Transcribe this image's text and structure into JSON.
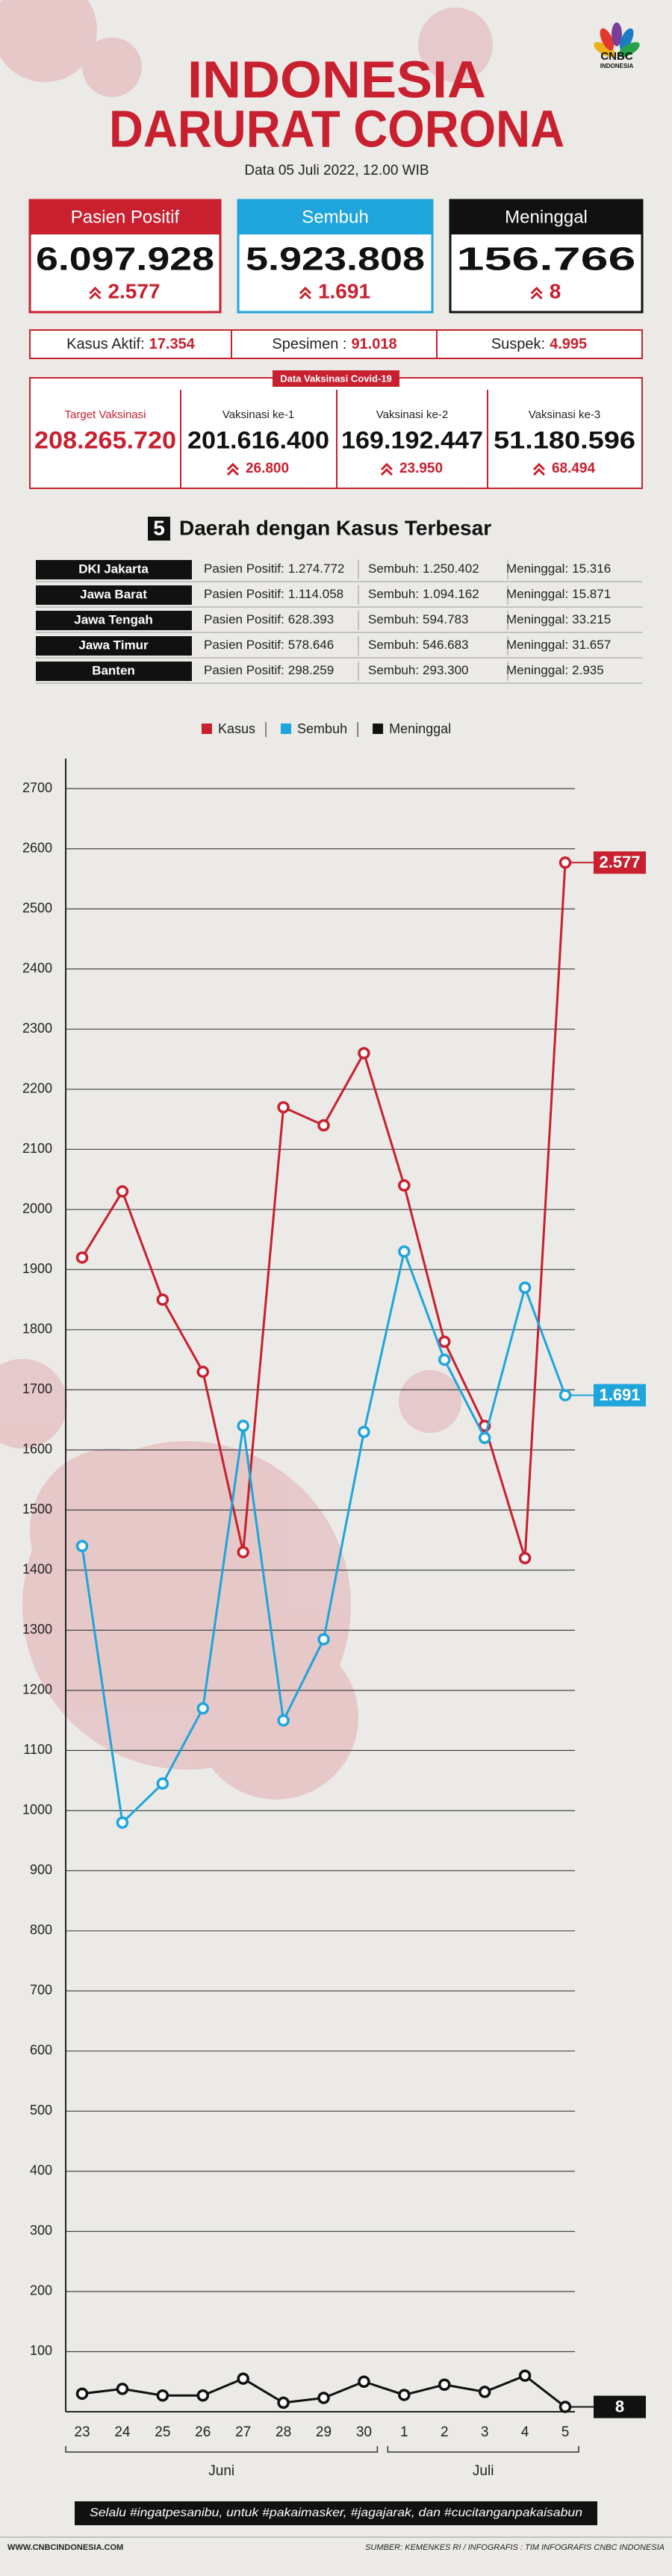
{
  "header": {
    "title_lines": [
      "INDONESIA",
      "DARURAT CORONA"
    ],
    "logo": "CNBC",
    "logo_sub": "INDONESIA",
    "date": "Data 05 Juli 2022, 12.00 WIB"
  },
  "cards": [
    {
      "label": "Pasien Positif",
      "value": "6.097.928",
      "change": "2.577"
    },
    {
      "label": "Sembuh",
      "value": "5.923.808",
      "change": "1.691"
    },
    {
      "label": "Meninggal",
      "value": "156.766",
      "change": "8"
    }
  ],
  "stats": [
    {
      "label": "Kasus Aktif:",
      "value": "17.354"
    },
    {
      "label": "Spesimen :",
      "value": "91.018"
    },
    {
      "label": "Suspek:",
      "value": "4.995"
    }
  ],
  "vaccination": {
    "tag": "Data Vaksinasi Covid-19",
    "items": [
      {
        "label": "Target Vaksinasi",
        "value": "208.265.720"
      },
      {
        "label": "Vaksinasi ke-1",
        "value": "201.616.400",
        "change": "26.800"
      },
      {
        "label": "Vaksinasi ke-2",
        "value": "169.192.447",
        "change": "23.950"
      },
      {
        "label": "Vaksinasi ke-3",
        "value": "51.180.596",
        "change": "68.494"
      }
    ]
  },
  "regions": {
    "number": "5",
    "title": "Daerah dengan Kasus Terbesar",
    "labels": [
      "Pasien Positif:",
      "Sembuh:",
      "Meninggal:"
    ],
    "rows": [
      [
        "DKI Jakarta",
        "1.274.772",
        "1.250.402",
        "15.316"
      ],
      [
        "Jawa Barat",
        "1.114.058",
        "1.094.162",
        "15.871"
      ],
      [
        "Jawa Tengah",
        "628.393",
        "594.783",
        "33.215"
      ],
      [
        "Jawa Timur",
        "578.646",
        "546.683",
        "31.657"
      ],
      [
        "Banten",
        "298.259",
        "293.300",
        "2.935"
      ]
    ]
  },
  "chart_data": {
    "type": "line",
    "category_groups": [
      {
        "name": "Juni",
        "categories": [
          "23",
          "24",
          "25",
          "26",
          "27",
          "28",
          "29",
          "30"
        ]
      },
      {
        "name": "Juli",
        "categories": [
          "1",
          "2",
          "3",
          "4",
          "5"
        ]
      }
    ],
    "series": [
      {
        "name": "Kasus",
        "color": "#c8202f",
        "values": [
          1920,
          2030,
          1850,
          1730,
          1430,
          2170,
          2140,
          2260,
          2040,
          1780,
          1640,
          1420,
          2577
        ],
        "value_labels": [
          null,
          null,
          null,
          null,
          null,
          null,
          null,
          null,
          null,
          null,
          null,
          null,
          "2.577"
        ],
        "end_label": true
      },
      {
        "name": "Sembuh",
        "color": "#1ea5dc",
        "values": [
          1440,
          980,
          1045,
          1170,
          1640,
          1150,
          1285,
          1630,
          1930,
          1750,
          1620,
          1870,
          1691
        ],
        "value_labels": [
          null,
          null,
          null,
          null,
          null,
          null,
          null,
          null,
          null,
          null,
          null,
          null,
          "1.691"
        ],
        "end_label": true
      },
      {
        "name": "Meninggal",
        "color": "#111111",
        "values": [
          30,
          38,
          27,
          27,
          55,
          15,
          23,
          50,
          28,
          45,
          33,
          60,
          8
        ],
        "end_label": true
      }
    ],
    "ylim": [
      0,
      2750
    ],
    "yticks": [
      100,
      200,
      300,
      400,
      500,
      600,
      700,
      800,
      900,
      1000,
      1100,
      1200,
      1300,
      1400,
      1500,
      1600,
      1700,
      1800,
      1900,
      2000,
      2100,
      2200,
      2300,
      2400,
      2500,
      2600,
      2700
    ],
    "grid": true,
    "legend": "top"
  },
  "footer": {
    "message": "Selalu #ingatpesanibu, untuk #pakaimasker, #jagajarak, dan #cucitanganpakaisabun",
    "website": "WWW.CNBCINDONESIA.COM",
    "source": "SUMBER: KEMENKES RI / INFOGRAFIS : TIM INFOGRAFIS CNBC INDONESIA"
  }
}
